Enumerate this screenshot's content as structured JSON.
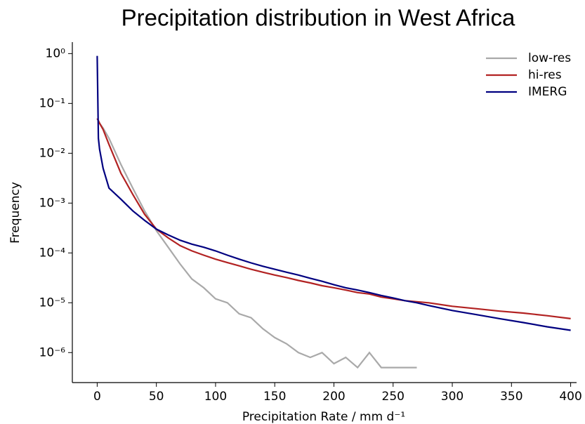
{
  "chart_data": {
    "type": "line",
    "title": "Precipitation distribution in West Africa",
    "xlabel": "Precipitation Rate / mm d⁻¹",
    "ylabel": "Frequency",
    "x": [
      0,
      1,
      2,
      5,
      10,
      20,
      30,
      40,
      50,
      60,
      70,
      80,
      90,
      100,
      110,
      120,
      130,
      140,
      150,
      160,
      170,
      180,
      190,
      200,
      210,
      220,
      230,
      240,
      250,
      260,
      270,
      280,
      300,
      320,
      340,
      360,
      380,
      400
    ],
    "series": [
      {
        "name": "low-res",
        "color": "#a9a9a9",
        "values": [
          0.05,
          0.045,
          0.04,
          0.032,
          0.02,
          0.006,
          0.002,
          0.0007,
          0.00028,
          0.00013,
          6e-05,
          3e-05,
          2e-05,
          1.2e-05,
          1e-05,
          6e-06,
          5e-06,
          3e-06,
          2e-06,
          1.5e-06,
          1e-06,
          8e-07,
          1e-06,
          6e-07,
          8e-07,
          5e-07,
          1e-06,
          5e-07,
          5e-07,
          5e-07,
          5e-07,
          null,
          null,
          null,
          null,
          null,
          null,
          null
        ]
      },
      {
        "name": "hi-res",
        "color": "#b22222",
        "values": [
          0.05,
          0.045,
          0.04,
          0.03,
          0.015,
          0.004,
          0.0015,
          0.0006,
          0.0003,
          0.0002,
          0.00014,
          0.00011,
          9e-05,
          7.5e-05,
          6.4e-05,
          5.5e-05,
          4.7e-05,
          4.1e-05,
          3.6e-05,
          3.2e-05,
          2.8e-05,
          2.5e-05,
          2.2e-05,
          2e-05,
          1.8e-05,
          1.6e-05,
          1.5e-05,
          1.3e-05,
          1.2e-05,
          1.1e-05,
          1.05e-05,
          1e-05,
          8.5e-06,
          7.6e-06,
          6.8e-06,
          6.2e-06,
          5.5e-06,
          4.8e-06
        ]
      },
      {
        "name": "IMERG",
        "color": "#000080",
        "values": [
          0.9,
          0.02,
          0.012,
          0.005,
          0.002,
          0.0012,
          0.0007,
          0.00045,
          0.0003,
          0.00023,
          0.00018,
          0.00015,
          0.00013,
          0.00011,
          9e-05,
          7.5e-05,
          6.3e-05,
          5.4e-05,
          4.7e-05,
          4.1e-05,
          3.6e-05,
          3.1e-05,
          2.7e-05,
          2.3e-05,
          2e-05,
          1.8e-05,
          1.6e-05,
          1.4e-05,
          1.25e-05,
          1.1e-05,
          1e-05,
          8.8e-06,
          7e-06,
          5.8e-06,
          4.8e-06,
          4e-06,
          3.3e-06,
          2.8e-06
        ]
      }
    ],
    "xlim": [
      -21,
      405
    ],
    "xticks": [
      0,
      50,
      100,
      150,
      200,
      250,
      300,
      350,
      400
    ],
    "ylim": [
      2.5e-07,
      1.7
    ],
    "yscale": "log",
    "yticks": [
      {
        "value": 1,
        "label": "10⁰"
      },
      {
        "value": 0.1,
        "label": "10⁻¹"
      },
      {
        "value": 0.01,
        "label": "10⁻²"
      },
      {
        "value": 0.001,
        "label": "10⁻³"
      },
      {
        "value": 0.0001,
        "label": "10⁻⁴"
      },
      {
        "value": 1e-05,
        "label": "10⁻⁵"
      },
      {
        "value": 1e-06,
        "label": "10⁻⁶"
      }
    ],
    "grid": false,
    "legend": "upper right"
  }
}
